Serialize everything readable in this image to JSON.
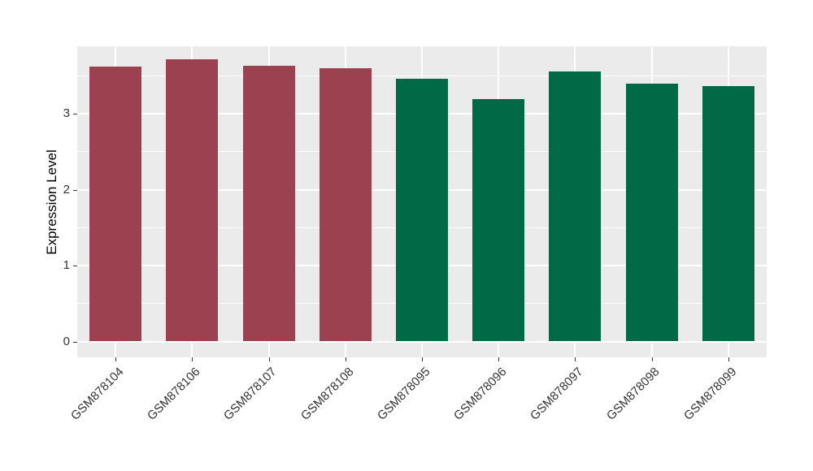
{
  "chart_data": {
    "type": "bar",
    "title": "",
    "xlabel": "",
    "ylabel": "Expression Level",
    "categories": [
      "GSM878104",
      "GSM878106",
      "GSM878107",
      "GSM878108",
      "GSM878095",
      "GSM878096",
      "GSM878097",
      "GSM878098",
      "GSM878099"
    ],
    "values": [
      3.62,
      3.72,
      3.63,
      3.6,
      3.46,
      3.19,
      3.56,
      3.4,
      3.36
    ],
    "bar_colors": [
      "#9B4150",
      "#9B4150",
      "#9B4150",
      "#9B4150",
      "#006946",
      "#006946",
      "#006946",
      "#006946",
      "#006946"
    ],
    "group_colors": {
      "maroon_group": "#9B4150",
      "green_group": "#006946"
    },
    "yticks": [
      0,
      1,
      2,
      3
    ],
    "yticks_minor": [
      0.5,
      1.5,
      2.5,
      3.5
    ],
    "ylim": [
      0,
      3.9
    ],
    "legend": "none",
    "grid": "on",
    "panel_background": "#EBEBEB",
    "gridline_color": "#FFFFFF",
    "axis_text_color": "#333333"
  }
}
